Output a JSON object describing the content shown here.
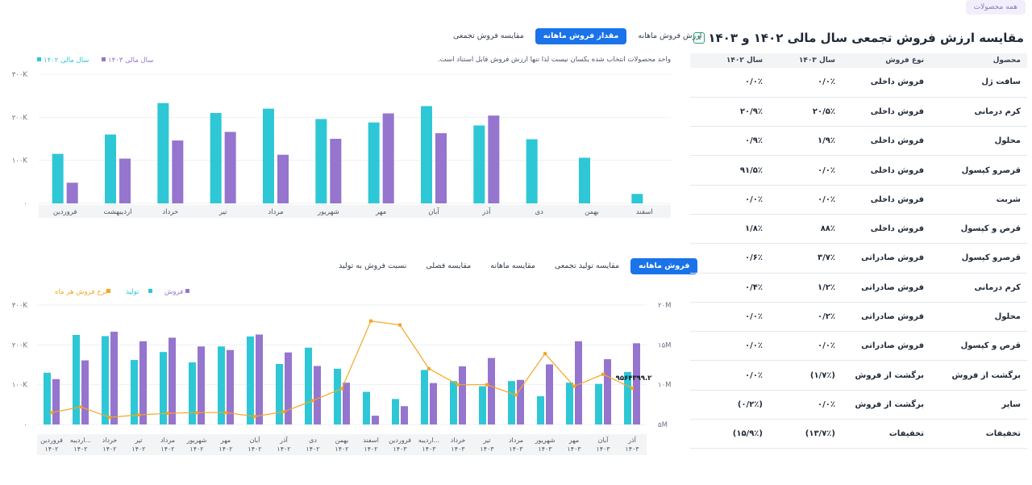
{
  "top_chip": "همه محصولات",
  "panel": {
    "title": "مقایسه ارزش فروش تجمعی سال مالی ۱۴۰۲ و ۱۴۰۳",
    "excel_icon": "excel-icon",
    "headers": [
      "محصول",
      "نوع فروش",
      "سال ۱۴۰۳",
      "سال ۱۴۰۲"
    ],
    "rows": [
      [
        "سافت ژل",
        "فروش داخلی",
        "۰/۰٪",
        "۰/۰٪"
      ],
      [
        "کرم درمانی",
        "فروش داخلی",
        "۲۰/۵٪",
        "۲۰/۹٪"
      ],
      [
        "محلول",
        "فروش داخلی",
        "۱/۹٪",
        "۰/۹٪"
      ],
      [
        "قرصرو کپسول",
        "فروش داخلی",
        "۰/۰٪",
        "۹۱/۵٪"
      ],
      [
        "شربت",
        "فروش داخلی",
        "۰/۰٪",
        "۰/۰٪"
      ],
      [
        "قرص و کپسول",
        "فروش داخلی",
        "۸۸٪",
        "۱/۸٪"
      ],
      [
        "قرصرو کپسول",
        "فروش صادراتی",
        "۳/۷٪",
        "۰/۶٪"
      ],
      [
        "کرم درمانی",
        "فروش صادراتی",
        "۱/۲٪",
        "۰/۴٪"
      ],
      [
        "محلول",
        "فروش صادراتی",
        "۰/۲٪",
        "۰/۰٪"
      ],
      [
        "قرص و کپسول",
        "فروش صادراتی",
        "۰/۰٪",
        "۰/۰٪"
      ],
      [
        "برگشت از فروش",
        "برگشت از فروش",
        "(۱/۷٪)",
        "۰/۰٪"
      ],
      [
        "سایر",
        "برگشت از فروش",
        "۰/۰٪",
        "(۰/۲٪)"
      ],
      [
        "تخفیفات",
        "تخفیفات",
        "(۱۳/۷٪)",
        "(۱۵/۹٪)"
      ]
    ]
  },
  "tabs_top": [
    {
      "label": "ارزش فروش ماهانه",
      "active": false
    },
    {
      "label": "مقدار فروش ماهانه",
      "active": true
    },
    {
      "label": "مقایسه فروش تجمعی",
      "active": false
    }
  ],
  "tabs_bottom": [
    {
      "label": "فروش ماهانه",
      "active": true
    },
    {
      "label": "مقایسه تولید تجمعی",
      "active": false
    },
    {
      "label": "مقایسه ماهانه",
      "active": false
    },
    {
      "label": "مقایسه فصلی",
      "active": false
    },
    {
      "label": "نسبت فروش به تولید",
      "active": false
    }
  ],
  "note": "واحد محصولات انتخاب شده یکسان نیست لذا تنها ارزش فروش قابل استناد است.",
  "colors": {
    "teal": "#2ec7d6",
    "purple": "#9575cd",
    "orange": "#f5a623",
    "accent": "#1a73e8"
  },
  "chart_data": [
    {
      "type": "bar",
      "legend": [
        "سال مالی ۱۴۰۳",
        "سال مالی ۱۴۰۲"
      ],
      "y_ticks": [
        "۰",
        "۱۰۰K",
        "۲۰۰K",
        "۳۰۰K"
      ],
      "ylim": [
        0,
        300000
      ],
      "categories": [
        "فروردین",
        "اردیبهشت",
        "خرداد",
        "تیر",
        "مرداد",
        "شهریور",
        "مهر",
        "آبان",
        "آذر",
        "دی",
        "بهمن",
        "اسفند"
      ],
      "series": [
        {
          "name": "سال مالی ۱۴۰۲",
          "color": "#2ec7d6",
          "values": [
            115000,
            160000,
            233000,
            210000,
            220000,
            196000,
            188000,
            226000,
            181000,
            149000,
            106000,
            22000
          ]
        },
        {
          "name": "سال مالی ۱۴۰۳",
          "color": "#9575cd",
          "values": [
            48000,
            104000,
            146000,
            166000,
            113000,
            150000,
            209000,
            163000,
            204000,
            null,
            null,
            null
          ]
        }
      ]
    },
    {
      "type": "bar+line",
      "legend": [
        "فروش",
        "تولید",
        "نرخ فروش هر ماه"
      ],
      "y_left_ticks": [
        "۰",
        "۱۰۰K",
        "۲۰۰K",
        "۳۰۰K"
      ],
      "ylim_left": [
        0,
        300000
      ],
      "y_right_ticks": [
        "۵M",
        "۱۰M",
        "۱۵M",
        "۲۰M"
      ],
      "ylim_right": [
        5000000,
        20000000
      ],
      "point_label": "۹۵۶۴۳۹۹.۲",
      "categories": [
        [
          "فروردین",
          "۱۴۰۲"
        ],
        [
          "اردیبه...",
          "۱۴۰۲"
        ],
        [
          "خرداد",
          "۱۴۰۲"
        ],
        [
          "تیر",
          "۱۴۰۲"
        ],
        [
          "مرداد",
          "۱۴۰۲"
        ],
        [
          "شهریور",
          "۱۴۰۲"
        ],
        [
          "مهر",
          "۱۴۰۲"
        ],
        [
          "آبان",
          "۱۴۰۲"
        ],
        [
          "آذر",
          "۱۴۰۲"
        ],
        [
          "دی",
          "۱۴۰۲"
        ],
        [
          "بهمن",
          "۱۴۰۲"
        ],
        [
          "اسفند",
          "۱۴۰۲"
        ],
        [
          "فروردین",
          "۱۴۰۳"
        ],
        [
          "اردیبه...",
          "۱۴۰۳"
        ],
        [
          "خرداد",
          "۱۴۰۳"
        ],
        [
          "تیر",
          "۱۴۰۳"
        ],
        [
          "مرداد",
          "۱۴۰۳"
        ],
        [
          "شهریور",
          "۱۴۰۳"
        ],
        [
          "مهر",
          "۱۴۰۳"
        ],
        [
          "آبان",
          "۱۴۰۳"
        ],
        [
          "آذر",
          "۱۴۰۳"
        ]
      ],
      "series": [
        {
          "name": "تولید",
          "color": "#2ec7d6",
          "axis": "left",
          "values": [
            130000,
            225000,
            222000,
            162000,
            182000,
            156000,
            196000,
            221000,
            152000,
            193000,
            140000,
            82000,
            64000,
            137000,
            109000,
            96000,
            109000,
            71000,
            105000,
            102000,
            132000
          ]
        },
        {
          "name": "فروش",
          "color": "#9575cd",
          "axis": "left",
          "values": [
            114000,
            161000,
            233000,
            209000,
            218000,
            196000,
            187000,
            226000,
            181000,
            147000,
            105000,
            22000,
            46000,
            104000,
            146000,
            167000,
            112000,
            151000,
            209000,
            164000,
            204000
          ]
        },
        {
          "name": "نرخ فروش هر ماه",
          "color": "#f5a623",
          "axis": "right",
          "values": [
            6500000,
            7200000,
            5900000,
            6200000,
            6400000,
            6500000,
            6500000,
            6000000,
            6600000,
            8000000,
            9500000,
            18000000,
            17500000,
            12000000,
            10000000,
            10000000,
            8700000,
            13900000,
            9800000,
            11300000,
            9564399.2
          ]
        }
      ]
    }
  ]
}
